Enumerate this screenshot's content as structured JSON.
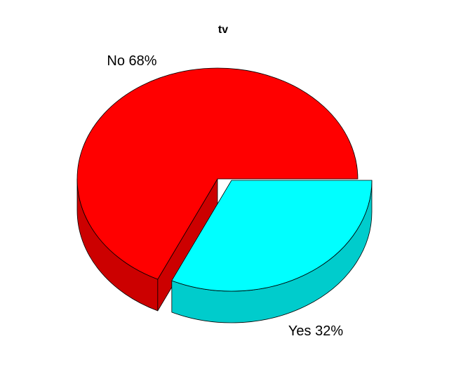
{
  "chart_data": {
    "type": "pie",
    "title": "tv",
    "slices": [
      {
        "label": "No 68%",
        "value": 68,
        "color": "#FF0000",
        "side_color": "#CC0000"
      },
      {
        "label": "Yes 32%",
        "value": 32,
        "color": "#00FFFF",
        "side_color": "#00CCCC"
      }
    ],
    "style": "3d",
    "exploded": true
  }
}
